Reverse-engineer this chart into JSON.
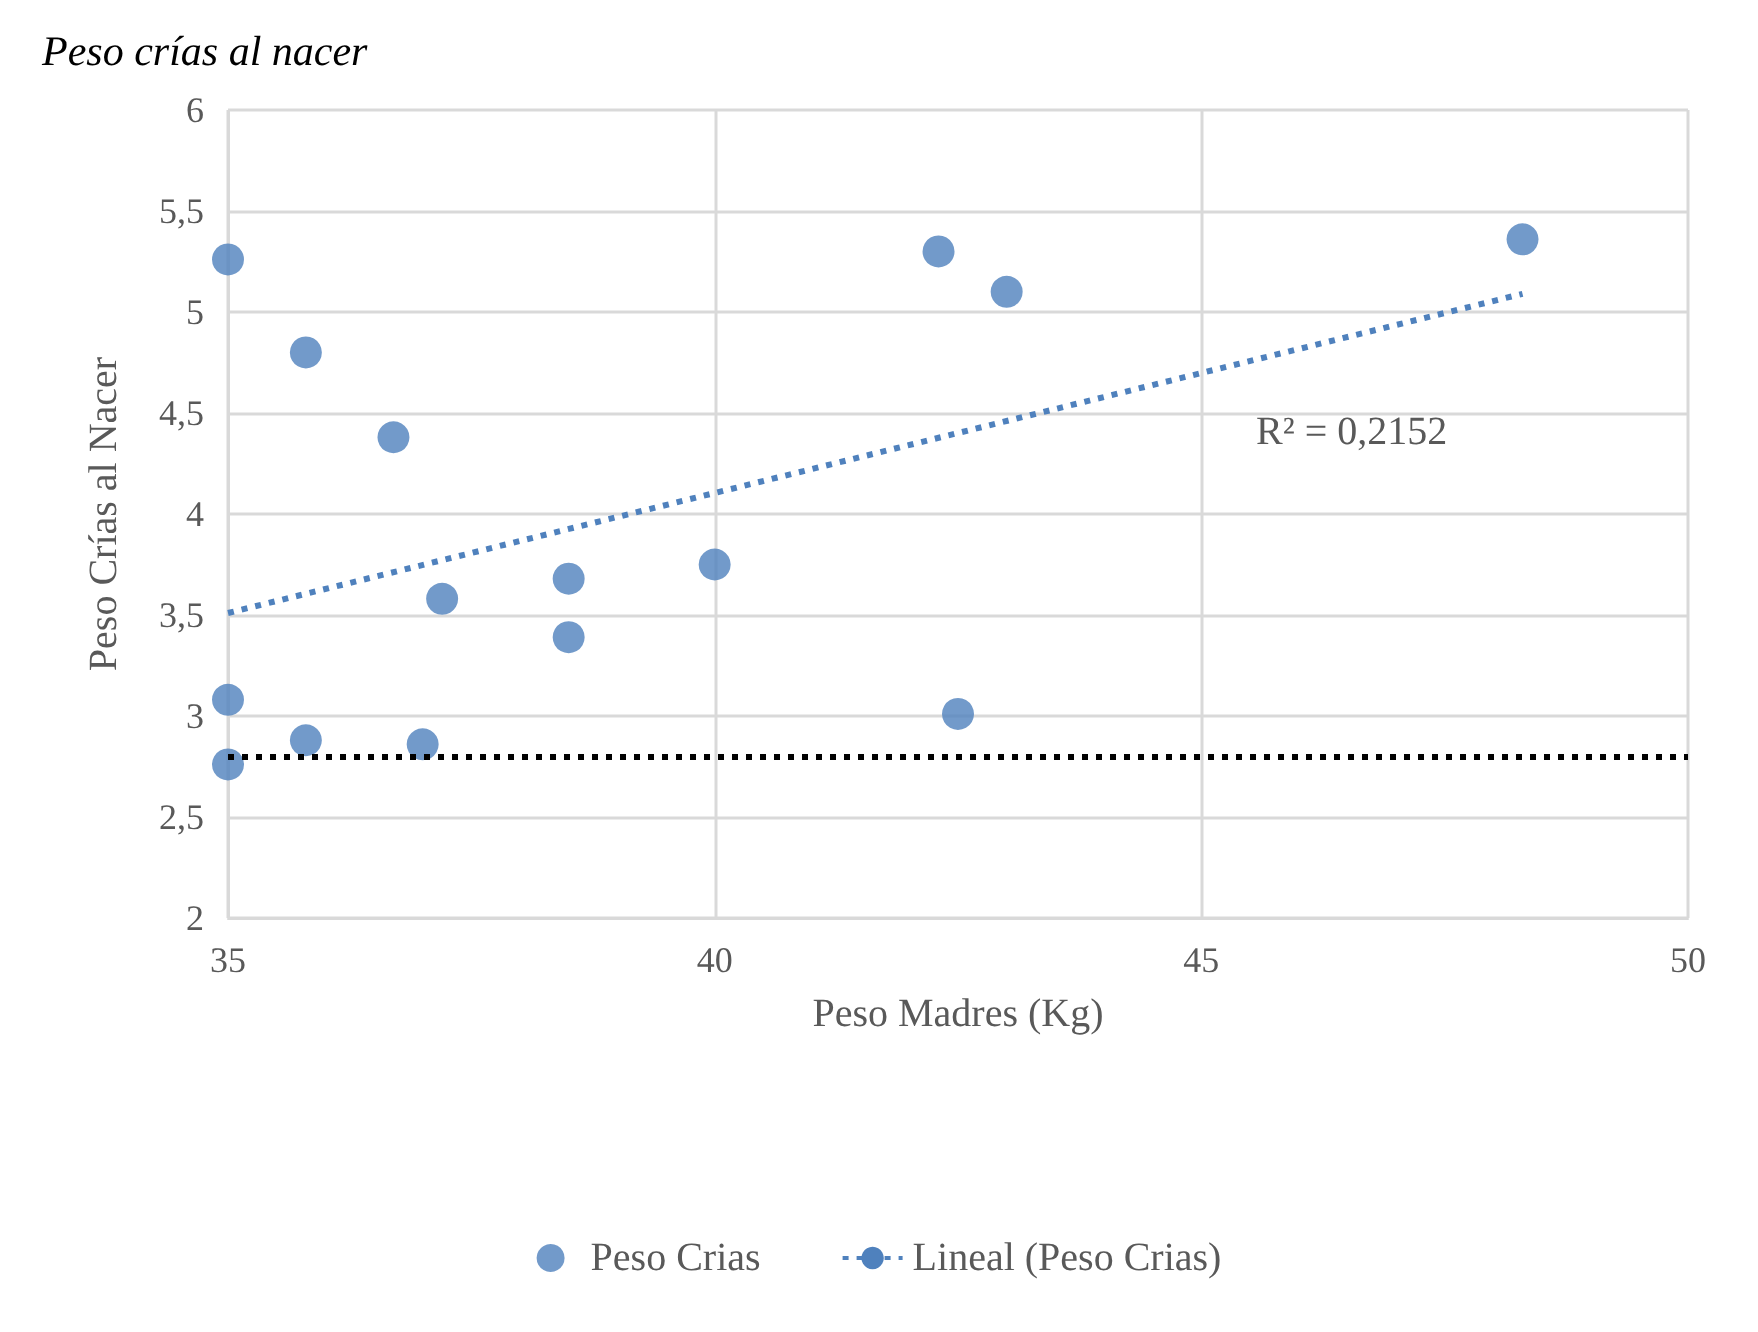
{
  "chart_data": {
    "type": "scatter",
    "title": "Peso crías al nacer",
    "xlabel": "Peso Madres (Kg)",
    "ylabel": "Peso Crías al Nacer",
    "series": [
      {
        "name": "Peso Crias",
        "color": "#4f81bd",
        "marker": "circle",
        "x": [
          35,
          35.8,
          36.7,
          37.2,
          38.5,
          38.5,
          40,
          35,
          35.8,
          37,
          35,
          42.3,
          43,
          42.5,
          48.3
        ],
        "values": [
          5.26,
          4.8,
          4.38,
          3.58,
          3.68,
          3.39,
          3.75,
          3.08,
          2.88,
          2.86,
          2.76,
          5.3,
          5.1,
          3.01,
          5.36
        ]
      },
      {
        "name": "Lineal (Peso Crias)",
        "type": "line",
        "color": "#4f81bd",
        "marker": "none",
        "line_style": "dotted",
        "x": [
          35,
          48.3
        ],
        "values": [
          3.51,
          5.09
        ]
      }
    ],
    "ref_lines": [
      {
        "axis": "y",
        "value": 2.8,
        "color": "#000000",
        "line_style": "dotted"
      }
    ],
    "annotations": [
      "R² = 0,2152"
    ],
    "xlim": [
      35,
      50
    ],
    "xticks": [
      35,
      40,
      45,
      50
    ],
    "ylim": [
      2,
      6
    ],
    "yticks": [
      2,
      {
        "value": 2.5,
        "label": "2,5"
      },
      3,
      {
        "value": 3.5,
        "label": "3,5"
      },
      4,
      {
        "value": 4.5,
        "label": "4,5"
      },
      5,
      {
        "value": 5.5,
        "label": "5,5"
      },
      6
    ],
    "grid": true,
    "legend": "bottom"
  }
}
